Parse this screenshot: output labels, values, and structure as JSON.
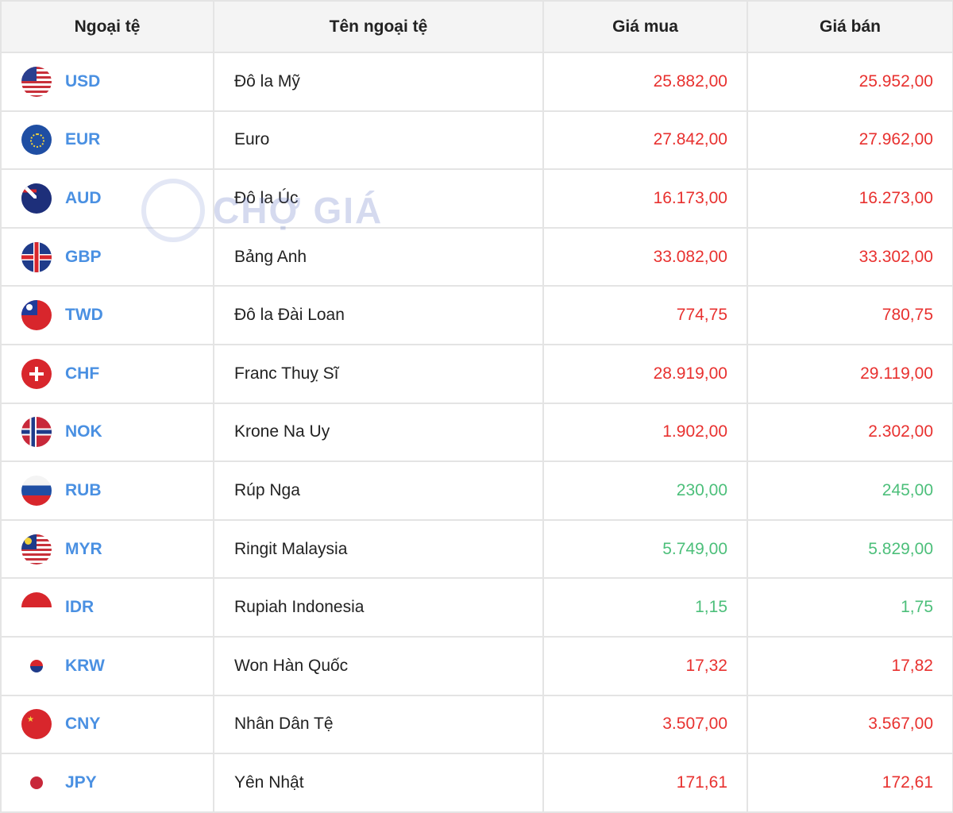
{
  "headers": [
    "Ngoại tệ",
    "Tên ngoại tệ",
    "Giá mua",
    "Giá bán"
  ],
  "watermark": "CHỢ GIÁ",
  "colors": {
    "up": "#e8312f",
    "down": "#4cbf7a",
    "code": "#4a90e2"
  },
  "rows": [
    {
      "code": "USD",
      "name": "Đô la Mỹ",
      "buy": "25.882,00",
      "sell": "25.952,00",
      "trend": "up",
      "flag": "us-flag-icon"
    },
    {
      "code": "EUR",
      "name": "Euro",
      "buy": "27.842,00",
      "sell": "27.962,00",
      "trend": "up",
      "flag": "eu-flag-icon"
    },
    {
      "code": "AUD",
      "name": "Đô la Úc",
      "buy": "16.173,00",
      "sell": "16.273,00",
      "trend": "up",
      "flag": "au-flag-icon"
    },
    {
      "code": "GBP",
      "name": "Bảng Anh",
      "buy": "33.082,00",
      "sell": "33.302,00",
      "trend": "up",
      "flag": "gb-flag-icon"
    },
    {
      "code": "TWD",
      "name": "Đô la Đài Loan",
      "buy": "774,75",
      "sell": "780,75",
      "trend": "up",
      "flag": "tw-flag-icon"
    },
    {
      "code": "CHF",
      "name": "Franc Thuỵ Sĩ",
      "buy": "28.919,00",
      "sell": "29.119,00",
      "trend": "up",
      "flag": "ch-flag-icon"
    },
    {
      "code": "NOK",
      "name": "Krone Na Uy",
      "buy": "1.902,00",
      "sell": "2.302,00",
      "trend": "up",
      "flag": "no-flag-icon"
    },
    {
      "code": "RUB",
      "name": "Rúp Nga",
      "buy": "230,00",
      "sell": "245,00",
      "trend": "down",
      "flag": "ru-flag-icon"
    },
    {
      "code": "MYR",
      "name": "Ringit Malaysia",
      "buy": "5.749,00",
      "sell": "5.829,00",
      "trend": "down",
      "flag": "my-flag-icon"
    },
    {
      "code": "IDR",
      "name": "Rupiah Indonesia",
      "buy": "1,15",
      "sell": "1,75",
      "trend": "down",
      "flag": "id-flag-icon"
    },
    {
      "code": "KRW",
      "name": "Won Hàn Quốc",
      "buy": "17,32",
      "sell": "17,82",
      "trend": "up",
      "flag": "kr-flag-icon"
    },
    {
      "code": "CNY",
      "name": "Nhân Dân Tệ",
      "buy": "3.507,00",
      "sell": "3.567,00",
      "trend": "up",
      "flag": "cn-flag-icon"
    },
    {
      "code": "JPY",
      "name": "Yên Nhật",
      "buy": "171,61",
      "sell": "172,61",
      "trend": "up",
      "flag": "jp-flag-icon"
    }
  ]
}
